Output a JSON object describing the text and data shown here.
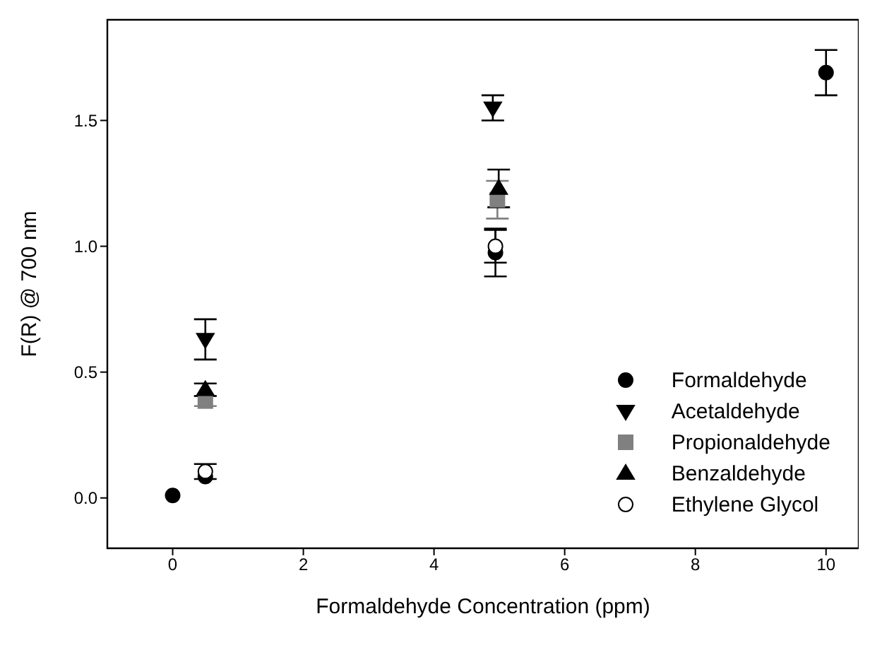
{
  "chart_data": {
    "type": "scatter",
    "xlabel": "Formaldehyde Concentration (ppm)",
    "ylabel": "F(R) @ 700 nm",
    "xlim": [
      -1,
      10.5
    ],
    "xticks": [
      0,
      2,
      4,
      6,
      8,
      10
    ],
    "ylim": [
      -0.2,
      1.9
    ],
    "yticks": [
      {
        "value": 0,
        "label": "0.0"
      },
      {
        "value": 0.5,
        "label": "0.5"
      },
      {
        "value": 1.0,
        "label": "1.0"
      },
      {
        "value": 1.5,
        "label": "1.5"
      }
    ],
    "legend": "right",
    "grid": false,
    "series": [
      {
        "name": "Formaldehyde",
        "color": "#000000",
        "marker": "circle",
        "x": [
          0,
          0.5,
          4.94,
          10
        ],
        "values": [
          0.01,
          0.085,
          0.975,
          1.69
        ],
        "errors": [
          null,
          null,
          0.095,
          0.09
        ]
      },
      {
        "name": "Acetaldehyde",
        "color": "#000000",
        "marker": "triangle-down",
        "x": [
          0.5,
          4.9
        ],
        "values": [
          0.63,
          1.55
        ],
        "errors": [
          0.08,
          0.05
        ]
      },
      {
        "name": "Propionaldehyde",
        "color": "#808080",
        "marker": "square",
        "x": [
          0.5,
          4.97
        ],
        "values": [
          0.385,
          1.185
        ],
        "errors": [
          0.02,
          0.075
        ]
      },
      {
        "name": "Benzaldehyde",
        "color": "#000000",
        "marker": "triangle",
        "x": [
          0.5,
          4.99
        ],
        "values": [
          0.43,
          1.23
        ],
        "errors": [
          0.025,
          0.075
        ]
      },
      {
        "name": "Ethylene Glycol",
        "color": "#ffffff",
        "marker": "circle",
        "x": [
          0.5,
          4.94
        ],
        "values": [
          0.105,
          1.0
        ],
        "errors": [
          0.03,
          0.065
        ]
      }
    ]
  }
}
